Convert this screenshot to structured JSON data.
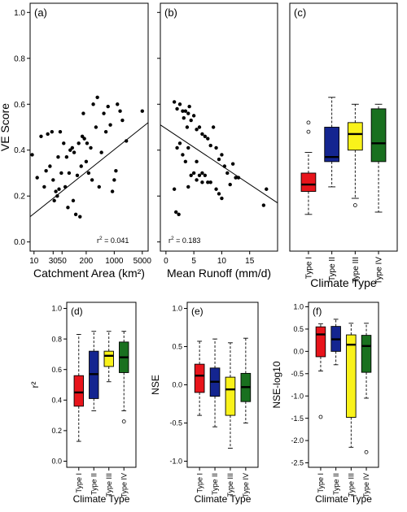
{
  "chart_data": [
    {
      "panel": "(a)",
      "type": "scatter",
      "xlabel": "Catchment Area (km²)",
      "ylabel": "VE Score",
      "xscale": "log",
      "xlim": [
        8,
        7000
      ],
      "ylim": [
        -0.04,
        1.04
      ],
      "xticks": [
        10,
        30,
        50,
        200,
        1000,
        5000
      ],
      "yticks": [
        0.0,
        0.2,
        0.4,
        0.6,
        0.8,
        1.0
      ],
      "annotation_pre": "r",
      "annotation_sup": "2",
      "annotation_post": " = 0.041",
      "fit_line": [
        [
          8,
          0.11
        ],
        [
          7000,
          0.52
        ]
      ],
      "points": [
        [
          9,
          0.38
        ],
        [
          12,
          0.28
        ],
        [
          15,
          0.46
        ],
        [
          18,
          0.24
        ],
        [
          20,
          0.31
        ],
        [
          22,
          0.47
        ],
        [
          25,
          0.33
        ],
        [
          28,
          0.48
        ],
        [
          30,
          0.27
        ],
        [
          32,
          0.18
        ],
        [
          35,
          0.22
        ],
        [
          38,
          0.2
        ],
        [
          40,
          0.37
        ],
        [
          42,
          0.23
        ],
        [
          45,
          0.48
        ],
        [
          48,
          0.3
        ],
        [
          55,
          0.43
        ],
        [
          60,
          0.24
        ],
        [
          65,
          0.37
        ],
        [
          70,
          0.15
        ],
        [
          75,
          0.3
        ],
        [
          80,
          0.4
        ],
        [
          90,
          0.41
        ],
        [
          95,
          0.18
        ],
        [
          100,
          0.39
        ],
        [
          110,
          0.12
        ],
        [
          120,
          0.29
        ],
        [
          130,
          0.43
        ],
        [
          140,
          0.11
        ],
        [
          150,
          0.33
        ],
        [
          160,
          0.46
        ],
        [
          170,
          0.56
        ],
        [
          180,
          0.45
        ],
        [
          200,
          0.35
        ],
        [
          210,
          0.43
        ],
        [
          230,
          0.3
        ],
        [
          260,
          0.41
        ],
        [
          280,
          0.27
        ],
        [
          300,
          0.6
        ],
        [
          350,
          0.5
        ],
        [
          380,
          0.63
        ],
        [
          420,
          0.24
        ],
        [
          480,
          0.39
        ],
        [
          550,
          0.56
        ],
        [
          620,
          0.48
        ],
        [
          700,
          0.59
        ],
        [
          800,
          0.51
        ],
        [
          900,
          0.22
        ],
        [
          1000,
          0.27
        ],
        [
          1100,
          0.31
        ],
        [
          1200,
          0.6
        ],
        [
          1400,
          0.57
        ],
        [
          1600,
          0.53
        ],
        [
          2000,
          0.44
        ],
        [
          5000,
          0.57
        ]
      ]
    },
    {
      "panel": "(b)",
      "type": "scatter",
      "xlabel": "Mean Runoff (mm/d)",
      "ylabel": "",
      "xlim": [
        -1,
        20
      ],
      "ylim": [
        -0.04,
        1.04
      ],
      "xticks": [
        0,
        5,
        10,
        15
      ],
      "yticks": [
        0.0,
        0.2,
        0.4,
        0.6,
        0.8,
        1.0
      ],
      "annotation_pre": "r",
      "annotation_sup": "2",
      "annotation_post": " = 0.183",
      "fit_line": [
        [
          -1,
          0.51
        ],
        [
          20,
          0.17
        ]
      ],
      "points": [
        [
          1.5,
          0.61
        ],
        [
          2,
          0.58
        ],
        [
          2.5,
          0.6
        ],
        [
          3,
          0.57
        ],
        [
          3.2,
          0.54
        ],
        [
          3.5,
          0.57
        ],
        [
          4,
          0.56
        ],
        [
          4.2,
          0.59
        ],
        [
          3.8,
          0.5
        ],
        [
          4.5,
          0.53
        ],
        [
          5,
          0.55
        ],
        [
          5.5,
          0.49
        ],
        [
          6,
          0.5
        ],
        [
          6.5,
          0.47
        ],
        [
          7,
          0.46
        ],
        [
          7.5,
          0.45
        ],
        [
          8,
          0.42
        ],
        [
          8.5,
          0.5
        ],
        [
          9,
          0.41
        ],
        [
          9.5,
          0.36
        ],
        [
          10,
          0.38
        ],
        [
          10.5,
          0.33
        ],
        [
          11,
          0.3
        ],
        [
          12,
          0.34
        ],
        [
          11.5,
          0.25
        ],
        [
          12.5,
          0.28
        ],
        [
          13,
          0.28
        ],
        [
          10,
          0.19
        ],
        [
          9.5,
          0.21
        ],
        [
          9,
          0.23
        ],
        [
          8,
          0.26
        ],
        [
          7.5,
          0.26
        ],
        [
          7,
          0.29
        ],
        [
          6.5,
          0.3
        ],
        [
          6,
          0.29
        ],
        [
          5.5,
          0.35
        ],
        [
          5,
          0.3
        ],
        [
          4.5,
          0.29
        ],
        [
          4,
          0.41
        ],
        [
          3.5,
          0.35
        ],
        [
          3,
          0.38
        ],
        [
          2.5,
          0.43
        ],
        [
          2,
          0.41
        ],
        [
          1.5,
          0.23
        ],
        [
          1.8,
          0.13
        ],
        [
          2.3,
          0.12
        ],
        [
          4,
          0.24
        ],
        [
          5.5,
          0.27
        ],
        [
          6.5,
          0.26
        ],
        [
          17.5,
          0.16
        ],
        [
          18,
          0.23
        ]
      ]
    },
    {
      "panel": "(c)",
      "type": "box",
      "xlabel": "Climate Type",
      "categories": [
        "Type I",
        "Type II",
        "Type III",
        "Type IV"
      ],
      "colors": [
        "#e8141b",
        "#142590",
        "#f9f21a",
        "#19701f"
      ],
      "ylim": [
        -0.04,
        1.04
      ],
      "yticks": [],
      "boxes": [
        {
          "min": 0.12,
          "q1": 0.22,
          "median": 0.25,
          "q3": 0.3,
          "max": 0.39,
          "outliers": [
            0.48,
            0.52
          ]
        },
        {
          "min": 0.24,
          "q1": 0.35,
          "median": 0.37,
          "q3": 0.5,
          "max": 0.63
        },
        {
          "min": 0.19,
          "q1": 0.4,
          "median": 0.47,
          "q3": 0.52,
          "max": 0.6,
          "outliers": [
            0.16
          ]
        },
        {
          "min": 0.13,
          "q1": 0.35,
          "median": 0.43,
          "q3": 0.58,
          "max": 0.6
        }
      ]
    },
    {
      "panel": "(d)",
      "type": "box",
      "xlabel": "Climate Type",
      "ylabel": "r²",
      "categories": [
        "Type I",
        "Type II",
        "Type III",
        "Type IV"
      ],
      "colors": [
        "#e8141b",
        "#142590",
        "#f9f21a",
        "#19701f"
      ],
      "ylim": [
        -0.04,
        1.04
      ],
      "yticks": [
        0.0,
        0.2,
        0.4,
        0.6,
        0.8,
        1.0
      ],
      "boxes": [
        {
          "min": 0.13,
          "q1": 0.36,
          "median": 0.45,
          "q3": 0.56,
          "max": 0.83
        },
        {
          "min": 0.33,
          "q1": 0.41,
          "median": 0.57,
          "q3": 0.72,
          "max": 0.85
        },
        {
          "min": 0.52,
          "q1": 0.62,
          "median": 0.69,
          "q3": 0.72,
          "max": 0.85
        },
        {
          "min": 0.33,
          "q1": 0.58,
          "median": 0.68,
          "q3": 0.78,
          "max": 0.85,
          "outliers": [
            0.26
          ]
        }
      ]
    },
    {
      "panel": "(e)",
      "type": "box",
      "xlabel": "Climate Type",
      "ylabel": "NSE",
      "categories": [
        "Type I",
        "Type II",
        "Type III",
        "Type IV"
      ],
      "colors": [
        "#e8141b",
        "#142590",
        "#f9f21a",
        "#19701f"
      ],
      "ylim": [
        -1.08,
        1.08
      ],
      "yticks": [
        -1.0,
        -0.5,
        0.0,
        0.5,
        1.0
      ],
      "boxes": [
        {
          "min": -0.4,
          "q1": -0.1,
          "median": 0.12,
          "q3": 0.27,
          "max": 0.57
        },
        {
          "min": -0.55,
          "q1": -0.15,
          "median": 0.04,
          "q3": 0.22,
          "max": 0.6
        },
        {
          "min": -0.83,
          "q1": -0.4,
          "median": -0.06,
          "q3": 0.1,
          "max": 0.55
        },
        {
          "min": -0.5,
          "q1": -0.22,
          "median": -0.03,
          "q3": 0.15,
          "max": 0.61
        }
      ]
    },
    {
      "panel": "(f)",
      "type": "box",
      "xlabel": "Climate Type",
      "ylabel": "NSE-log10",
      "categories": [
        "Type I",
        "Type II",
        "Type III",
        "Type IV"
      ],
      "colors": [
        "#e8141b",
        "#142590",
        "#f9f21a",
        "#19701f"
      ],
      "ylim": [
        -2.6,
        1.1
      ],
      "yticks": [
        -2.5,
        -2.0,
        -1.5,
        -1.0,
        -0.5,
        0.0,
        0.5,
        1.0
      ],
      "boxes": [
        {
          "min": -0.44,
          "q1": -0.12,
          "median": 0.38,
          "q3": 0.55,
          "max": 0.62,
          "outliers": [
            -1.47
          ]
        },
        {
          "min": -0.3,
          "q1": 0.0,
          "median": 0.27,
          "q3": 0.56,
          "max": 0.72
        },
        {
          "min": -2.15,
          "q1": -1.48,
          "median": 0.15,
          "q3": 0.37,
          "max": 0.63
        },
        {
          "min": -1.05,
          "q1": -0.47,
          "median": 0.12,
          "q3": 0.36,
          "max": 0.63,
          "outliers": [
            -2.26
          ]
        }
      ]
    }
  ]
}
